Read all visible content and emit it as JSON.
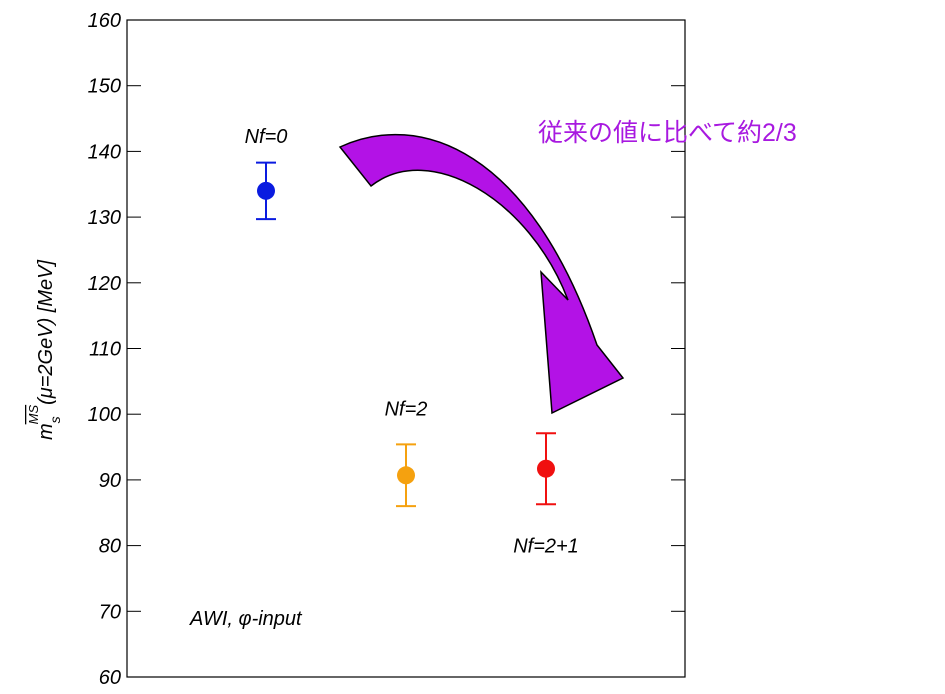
{
  "chart_data": {
    "type": "scatter",
    "categories": [
      "Nf=0",
      "Nf=2",
      "Nf=2+1"
    ],
    "values": [
      134,
      90.7,
      91.7
    ],
    "errors": [
      4.3,
      4.7,
      5.4
    ],
    "colors": [
      "#0a1be0",
      "#f5a10f",
      "#f01010"
    ],
    "ylim": [
      60,
      160
    ],
    "yticks": [
      60,
      70,
      80,
      90,
      100,
      110,
      120,
      130,
      140,
      150,
      160
    ],
    "ylabel": {
      "symbol": "m",
      "subscript": "s",
      "superscript": "MS",
      "text": "(μ=2GeV) [MeV]"
    },
    "annotations": [
      "AWI, φ-input",
      "従来の値に比べて約2/3"
    ]
  }
}
